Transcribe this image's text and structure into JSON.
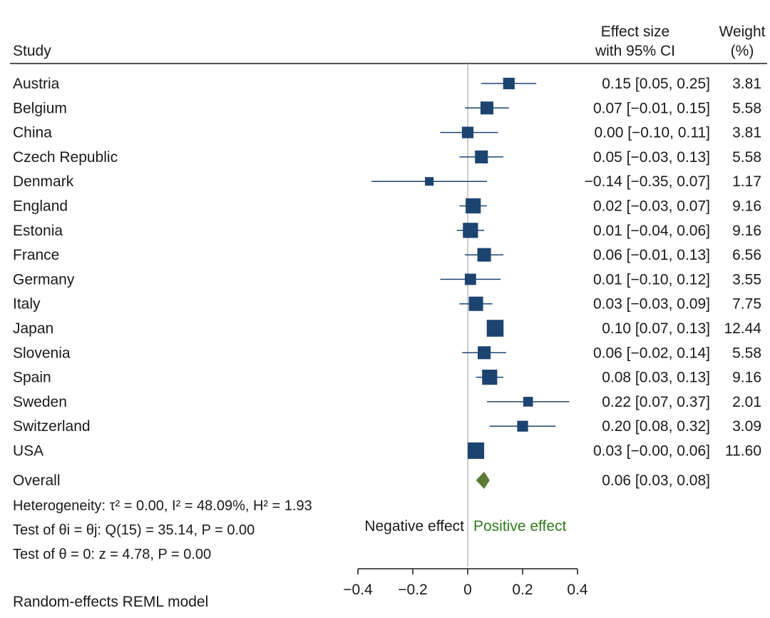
{
  "chart_data": {
    "type": "forest",
    "headers": {
      "study": "Study",
      "effect_line1": "Effect size",
      "effect_line2": "with 95% CI",
      "weight_line1": "Weight",
      "weight_line2": "(%)"
    },
    "studies": [
      {
        "name": "Austria",
        "effect": 0.15,
        "lo": 0.05,
        "hi": 0.25,
        "ci_text": "0.15 [0.05, 0.25]",
        "weight": 3.81,
        "weight_text": "3.81"
      },
      {
        "name": "Belgium",
        "effect": 0.07,
        "lo": -0.01,
        "hi": 0.15,
        "ci_text": "0.07 [−0.01, 0.15]",
        "weight": 5.58,
        "weight_text": "5.58"
      },
      {
        "name": "China",
        "effect": 0.0,
        "lo": -0.1,
        "hi": 0.11,
        "ci_text": "0.00 [−0.10, 0.11]",
        "weight": 3.81,
        "weight_text": "3.81"
      },
      {
        "name": "Czech Republic",
        "effect": 0.05,
        "lo": -0.03,
        "hi": 0.13,
        "ci_text": "0.05 [−0.03, 0.13]",
        "weight": 5.58,
        "weight_text": "5.58"
      },
      {
        "name": "Denmark",
        "effect": -0.14,
        "lo": -0.35,
        "hi": 0.07,
        "ci_text": "−0.14 [−0.35, 0.07]",
        "weight": 1.17,
        "weight_text": "1.17"
      },
      {
        "name": "England",
        "effect": 0.02,
        "lo": -0.03,
        "hi": 0.07,
        "ci_text": "0.02 [−0.03, 0.07]",
        "weight": 9.16,
        "weight_text": "9.16"
      },
      {
        "name": "Estonia",
        "effect": 0.01,
        "lo": -0.04,
        "hi": 0.06,
        "ci_text": "0.01 [−0.04, 0.06]",
        "weight": 9.16,
        "weight_text": "9.16"
      },
      {
        "name": "France",
        "effect": 0.06,
        "lo": -0.01,
        "hi": 0.13,
        "ci_text": "0.06 [−0.01, 0.13]",
        "weight": 6.56,
        "weight_text": "6.56"
      },
      {
        "name": "Germany",
        "effect": 0.01,
        "lo": -0.1,
        "hi": 0.12,
        "ci_text": "0.01 [−0.10, 0.12]",
        "weight": 3.55,
        "weight_text": "3.55"
      },
      {
        "name": "Italy",
        "effect": 0.03,
        "lo": -0.03,
        "hi": 0.09,
        "ci_text": "0.03 [−0.03, 0.09]",
        "weight": 7.75,
        "weight_text": "7.75"
      },
      {
        "name": "Japan",
        "effect": 0.1,
        "lo": 0.07,
        "hi": 0.13,
        "ci_text": "0.10 [0.07, 0.13]",
        "weight": 12.44,
        "weight_text": "12.44"
      },
      {
        "name": "Slovenia",
        "effect": 0.06,
        "lo": -0.02,
        "hi": 0.14,
        "ci_text": "0.06 [−0.02, 0.14]",
        "weight": 5.58,
        "weight_text": "5.58"
      },
      {
        "name": "Spain",
        "effect": 0.08,
        "lo": 0.03,
        "hi": 0.13,
        "ci_text": "0.08 [0.03, 0.13]",
        "weight": 9.16,
        "weight_text": "9.16"
      },
      {
        "name": "Sweden",
        "effect": 0.22,
        "lo": 0.07,
        "hi": 0.37,
        "ci_text": "0.22 [0.07, 0.37]",
        "weight": 2.01,
        "weight_text": "2.01"
      },
      {
        "name": "Switzerland",
        "effect": 0.2,
        "lo": 0.08,
        "hi": 0.32,
        "ci_text": "0.20 [0.08, 0.32]",
        "weight": 3.09,
        "weight_text": "3.09"
      },
      {
        "name": "USA",
        "effect": 0.03,
        "lo": -0.0,
        "hi": 0.06,
        "ci_text": "0.03 [−0.00, 0.06]",
        "weight": 11.6,
        "weight_text": "11.60"
      }
    ],
    "overall": {
      "name": "Overall",
      "effect": 0.06,
      "lo": 0.03,
      "hi": 0.08,
      "ci_text": "0.06 [0.03, 0.08]"
    },
    "stats": {
      "heterogeneity": "Heterogeneity: τ² = 0.00, I² = 48.09%, H² = 1.93",
      "test_theta_ij": "Test of θi = θj: Q(15) = 35.14, P = 0.00",
      "test_theta_zero": "Test of θ = 0: z = 4.78, P = 0.00"
    },
    "effect_labels": {
      "negative": "Negative effect",
      "positive": "Positive effect"
    },
    "x_axis": {
      "range": [
        -0.4,
        0.4
      ],
      "ticks": [
        -0.4,
        -0.2,
        0,
        0.2,
        0.4
      ],
      "tick_labels": [
        "−0.4",
        "−0.2",
        "0",
        "0.2",
        "0.4"
      ]
    },
    "model_note": "Random-effects REML model",
    "colors": {
      "marker": "#1d4470",
      "overall": "#5b7a33",
      "positive_text": "#2e7d1f",
      "axis": "#1a1a1a",
      "zero_line": "#9a9a9a"
    }
  }
}
